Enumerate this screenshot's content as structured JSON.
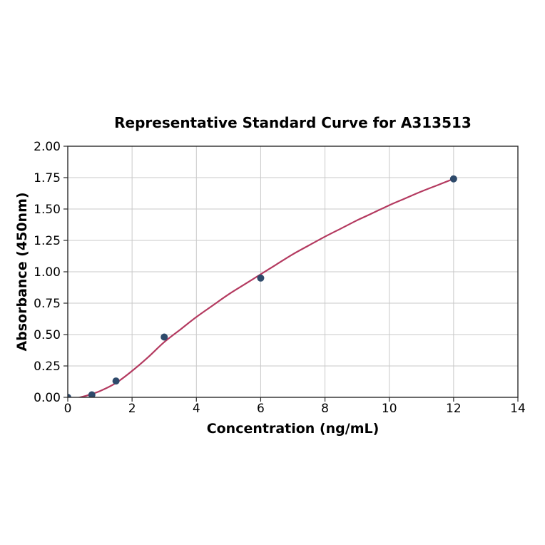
{
  "chart_data": {
    "type": "scatter",
    "title": "Representative Standard Curve for A313513",
    "xlabel": "Concentration (ng/mL)",
    "ylabel": "Absorbance (450nm)",
    "xlim": [
      0,
      14
    ],
    "ylim": [
      0,
      2.0
    ],
    "xticks": [
      0,
      2,
      4,
      6,
      8,
      10,
      12,
      14
    ],
    "xtick_labels": [
      "0",
      "2",
      "4",
      "6",
      "8",
      "10",
      "12",
      "14"
    ],
    "yticks": [
      0,
      0.25,
      0.5,
      0.75,
      1.0,
      1.25,
      1.5,
      1.75,
      2.0
    ],
    "ytick_labels": [
      "0.00",
      "0.25",
      "0.50",
      "0.75",
      "1.00",
      "1.25",
      "1.50",
      "1.75",
      "2.00"
    ],
    "grid": true,
    "legend_position": "none",
    "series": [
      {
        "name": "standard-points",
        "type": "scatter",
        "x": [
          0,
          0.75,
          1.5,
          3,
          6,
          12
        ],
        "y": [
          0.0,
          0.02,
          0.13,
          0.48,
          0.95,
          1.74
        ]
      },
      {
        "name": "fit-curve",
        "type": "line",
        "x": [
          0.3,
          0.6,
          1.0,
          1.5,
          2.0,
          2.5,
          3.0,
          3.5,
          4.0,
          4.5,
          5.0,
          5.5,
          6.0,
          6.5,
          7.0,
          7.5,
          8.0,
          8.5,
          9.0,
          9.5,
          10.0,
          10.5,
          11.0,
          11.5,
          12.0
        ],
        "y": [
          -0.005,
          0.015,
          0.05,
          0.115,
          0.21,
          0.32,
          0.44,
          0.54,
          0.64,
          0.73,
          0.82,
          0.9,
          0.98,
          1.06,
          1.14,
          1.21,
          1.28,
          1.345,
          1.41,
          1.47,
          1.53,
          1.585,
          1.64,
          1.69,
          1.74
        ]
      }
    ],
    "colors": {
      "curve": "#b43a60",
      "points": "#2e4a6b",
      "grid": "#c9c9c9",
      "axis": "#2a2a2a",
      "text": "#000000",
      "background": "#ffffff"
    }
  }
}
